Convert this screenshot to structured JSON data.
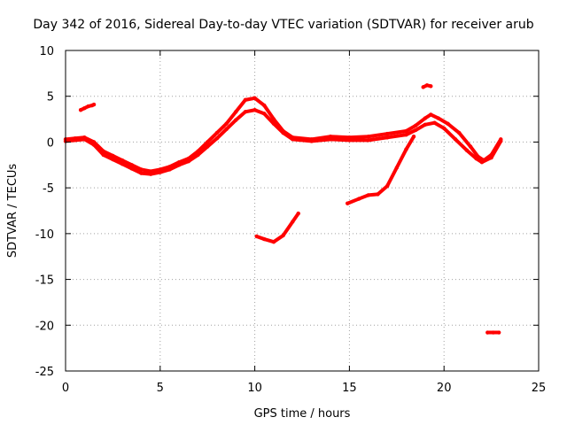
{
  "chart_data": {
    "type": "scatter",
    "title": "Day 342 of 2016, Sidereal Day-to-day VTEC variation (SDTVAR) for receiver arub",
    "xlabel": "GPS time / hours",
    "ylabel": "SDTVAR / TECUs",
    "xlim": [
      0,
      25
    ],
    "ylim": [
      -25,
      10
    ],
    "xticks": [
      0,
      5,
      10,
      15,
      20,
      25
    ],
    "yticks": [
      -25,
      -20,
      -15,
      -10,
      -5,
      0,
      5,
      10
    ],
    "grid": true,
    "series_color": "#ff0000",
    "series": [
      {
        "name": "main-band-a",
        "points": [
          [
            0,
            0.3
          ],
          [
            0.5,
            0.4
          ],
          [
            1,
            0.5
          ],
          [
            1.5,
            0
          ],
          [
            2,
            -1
          ],
          [
            2.5,
            -1.5
          ],
          [
            3,
            -2
          ],
          [
            3.5,
            -2.5
          ],
          [
            4,
            -3
          ],
          [
            4.5,
            -3.2
          ],
          [
            5,
            -3
          ],
          [
            5.5,
            -2.7
          ],
          [
            6,
            -2.2
          ],
          [
            6.5,
            -1.8
          ],
          [
            7,
            -1
          ],
          [
            7.5,
            0
          ],
          [
            8,
            1
          ],
          [
            8.5,
            2
          ],
          [
            9,
            3.3
          ],
          [
            9.5,
            4.6
          ],
          [
            10,
            4.8
          ],
          [
            10.5,
            4
          ],
          [
            11,
            2.5
          ],
          [
            11.5,
            1.2
          ],
          [
            12,
            0.5
          ],
          [
            13,
            0.3
          ],
          [
            14,
            0.6
          ],
          [
            15,
            0.5
          ],
          [
            16,
            0.6
          ],
          [
            17,
            0.9
          ],
          [
            18,
            1.2
          ],
          [
            18.5,
            1.8
          ],
          [
            19,
            2.6
          ],
          [
            19.3,
            3.0
          ],
          [
            19.7,
            2.6
          ],
          [
            20.2,
            2
          ],
          [
            20.8,
            1
          ],
          [
            21.4,
            -0.5
          ],
          [
            21.8,
            -1.6
          ],
          [
            22.1,
            -2
          ],
          [
            22.5,
            -1.4
          ],
          [
            23,
            0.3
          ]
        ]
      },
      {
        "name": "main-band-b",
        "points": [
          [
            0,
            0.1
          ],
          [
            0.5,
            0.2
          ],
          [
            1,
            0.3
          ],
          [
            1.5,
            -0.3
          ],
          [
            2,
            -1.4
          ],
          [
            2.5,
            -1.9
          ],
          [
            3,
            -2.4
          ],
          [
            3.5,
            -2.9
          ],
          [
            4,
            -3.4
          ],
          [
            4.5,
            -3.5
          ],
          [
            5,
            -3.3
          ],
          [
            5.5,
            -3
          ],
          [
            6,
            -2.5
          ],
          [
            6.5,
            -2.1
          ],
          [
            7,
            -1.4
          ],
          [
            7.5,
            -0.5
          ],
          [
            8,
            0.4
          ],
          [
            8.5,
            1.4
          ],
          [
            9,
            2.4
          ],
          [
            9.5,
            3.3
          ],
          [
            10,
            3.5
          ],
          [
            10.5,
            3.1
          ],
          [
            11,
            2
          ],
          [
            11.5,
            1
          ],
          [
            12,
            0.3
          ],
          [
            13,
            0.1
          ],
          [
            14,
            0.3
          ],
          [
            15,
            0.2
          ],
          [
            16,
            0.2
          ],
          [
            17,
            0.5
          ],
          [
            18,
            0.8
          ],
          [
            18.5,
            1.3
          ],
          [
            19,
            1.9
          ],
          [
            19.5,
            2.1
          ],
          [
            20,
            1.5
          ],
          [
            20.6,
            0.3
          ],
          [
            21.2,
            -0.9
          ],
          [
            21.7,
            -1.8
          ],
          [
            22,
            -2.2
          ],
          [
            22.5,
            -1.7
          ],
          [
            23,
            0.1
          ]
        ]
      },
      {
        "name": "fragment-1",
        "points": [
          [
            0.8,
            3.5
          ],
          [
            1,
            3.7
          ],
          [
            1.2,
            3.9
          ],
          [
            1.4,
            4.0
          ],
          [
            1.5,
            4.1
          ]
        ]
      },
      {
        "name": "fragment-2",
        "points": [
          [
            10.1,
            -10.3
          ],
          [
            10.5,
            -10.6
          ],
          [
            11,
            -10.9
          ],
          [
            11.5,
            -10.2
          ],
          [
            12,
            -8.7
          ],
          [
            12.3,
            -7.8
          ]
        ]
      },
      {
        "name": "fragment-3",
        "points": [
          [
            14.9,
            -6.7
          ],
          [
            15.5,
            -6.2
          ],
          [
            16,
            -5.8
          ],
          [
            16.5,
            -5.7
          ],
          [
            17,
            -4.8
          ],
          [
            17.5,
            -2.8
          ],
          [
            18,
            -0.8
          ],
          [
            18.4,
            0.6
          ]
        ]
      },
      {
        "name": "fragment-4",
        "points": [
          [
            18.9,
            6.0
          ],
          [
            19.1,
            6.2
          ],
          [
            19.3,
            6.1
          ]
        ]
      },
      {
        "name": "fragment-5",
        "points": [
          [
            22.3,
            -20.8
          ],
          [
            22.6,
            -20.8
          ],
          [
            22.9,
            -20.8
          ]
        ]
      }
    ]
  }
}
